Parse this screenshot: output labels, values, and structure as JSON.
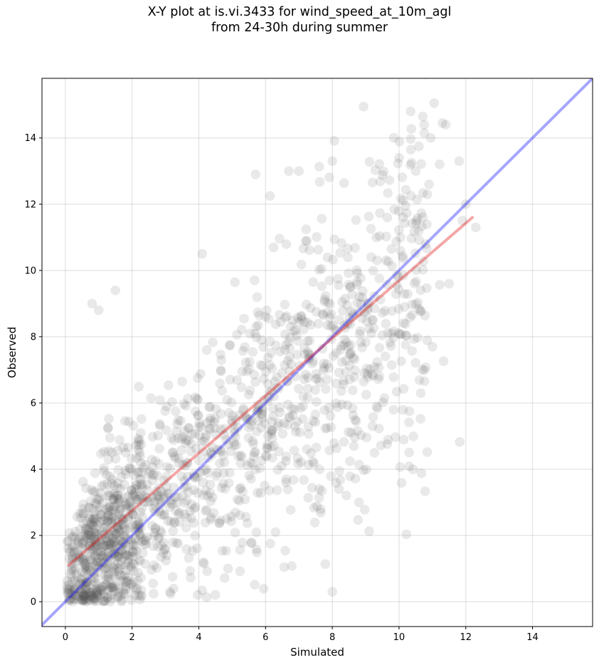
{
  "chart_data": {
    "type": "scatter",
    "title_line1": "X-Y plot at is.vi.3433 for wind_speed_at_10m_agl",
    "title_line2": "from 24-30h during summer",
    "xlabel": "Simulated",
    "ylabel": "Observed",
    "xlim": [
      -0.7,
      15.8
    ],
    "ylim": [
      -0.75,
      15.8
    ],
    "xticks": [
      0,
      2,
      4,
      6,
      8,
      10,
      12,
      14
    ],
    "yticks": [
      0,
      2,
      4,
      6,
      8,
      10,
      12,
      14
    ],
    "grid": true,
    "point_color": "#555555",
    "identity_line": {
      "color": "#0000ff",
      "x": [
        -0.7,
        15.8
      ],
      "y": [
        -0.7,
        15.8
      ]
    },
    "fit_line": {
      "color": "#e00000",
      "x": [
        0.1,
        12.2
      ],
      "y": [
        1.1,
        11.6
      ]
    },
    "outliers": [
      [
        11.05,
        15.05
      ],
      [
        11.3,
        14.45
      ],
      [
        11.4,
        14.4
      ],
      [
        10.95,
        14.0
      ],
      [
        8.0,
        13.3
      ],
      [
        10.0,
        13.4
      ],
      [
        10.5,
        13.0
      ],
      [
        10.9,
        12.6
      ],
      [
        8.0,
        0.3
      ],
      [
        8.8,
        3.0
      ],
      [
        0.8,
        9.0
      ],
      [
        1.5,
        9.4
      ],
      [
        1.0,
        8.8
      ],
      [
        11.0,
        7.7
      ],
      [
        4.1,
        10.5
      ],
      [
        6.7,
        13.0
      ],
      [
        7.0,
        13.0
      ],
      [
        5.7,
        12.9
      ],
      [
        11.8,
        13.3
      ],
      [
        11.9,
        11.5
      ],
      [
        12.3,
        11.3
      ],
      [
        11.5,
        9.6
      ],
      [
        8.2,
        3.4
      ],
      [
        12.0,
        12.0
      ]
    ]
  }
}
